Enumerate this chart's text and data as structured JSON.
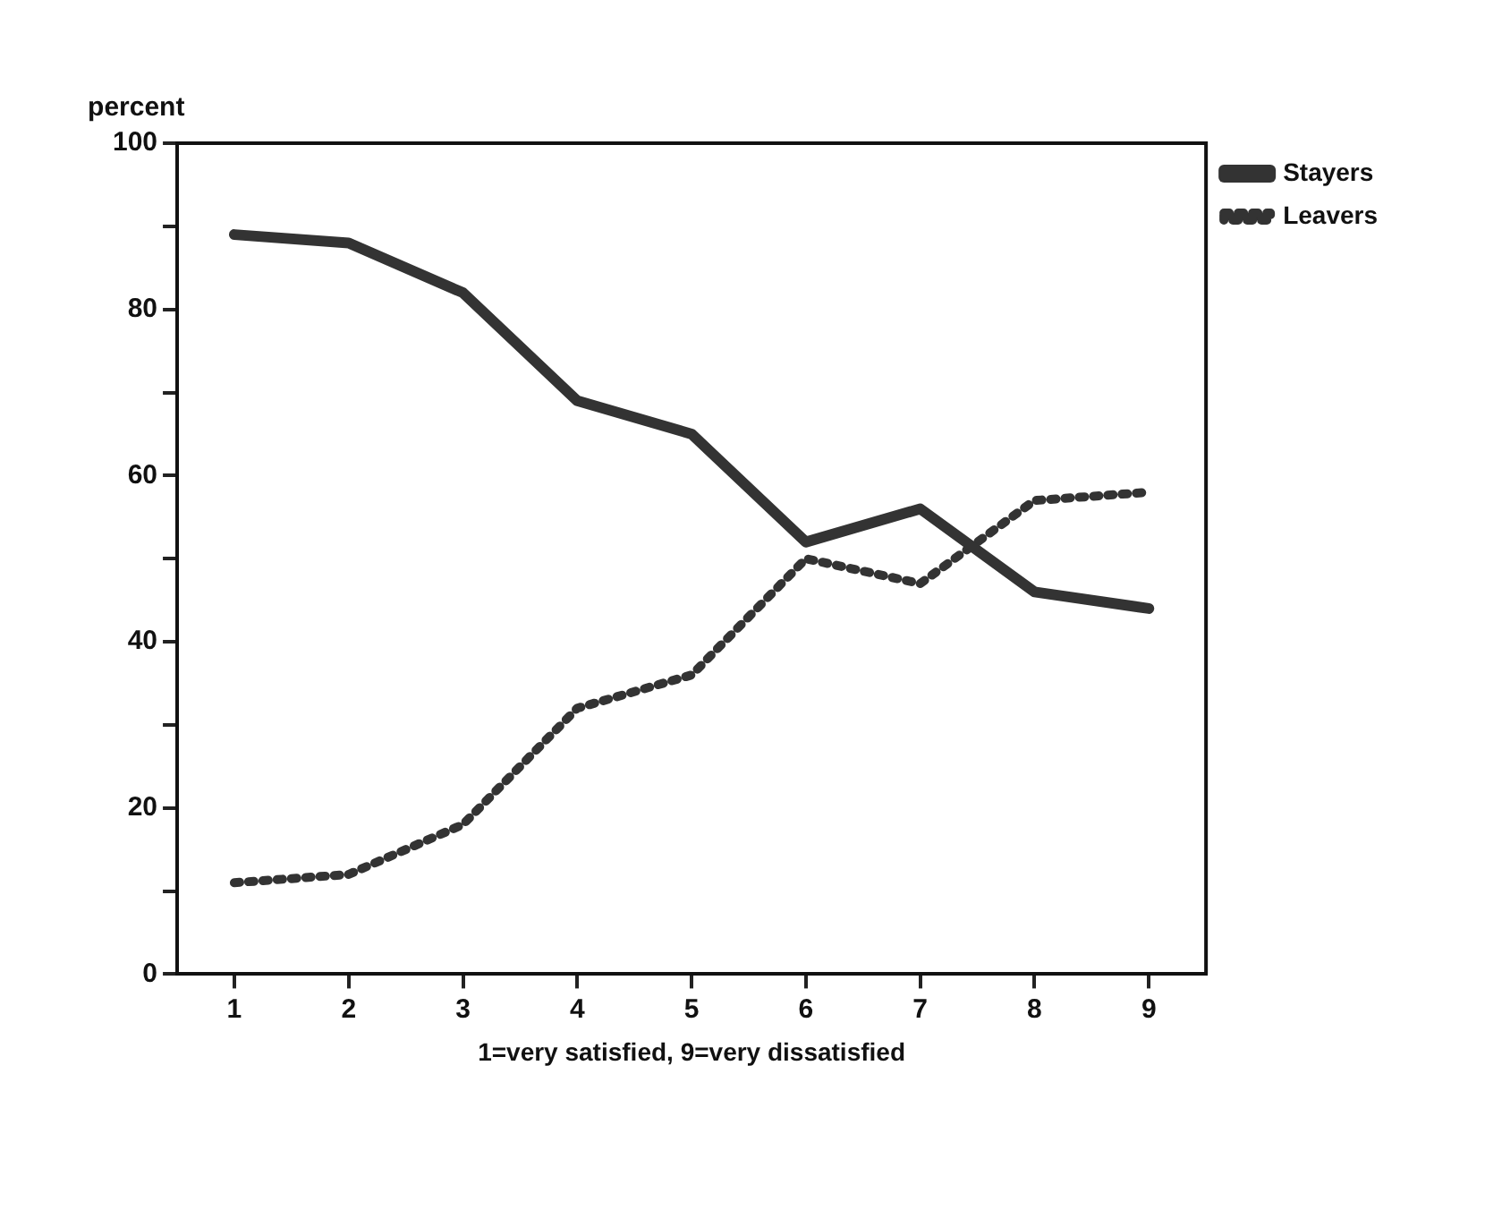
{
  "chart_data": {
    "type": "line",
    "ylabel": "percent",
    "xlabel": "1=very satisfied, 9=very dissatisfied",
    "categories": [
      "1",
      "2",
      "3",
      "4",
      "5",
      "6",
      "7",
      "8",
      "9"
    ],
    "series": [
      {
        "name": "Stayers",
        "color": "#333333",
        "line_style": "solid",
        "values": [
          89,
          88,
          82,
          69,
          65,
          52,
          56,
          46,
          44
        ]
      },
      {
        "name": "Leavers",
        "color": "#333333",
        "line_style": "dotted",
        "values": [
          11,
          12,
          18,
          32,
          36,
          50,
          47,
          57,
          58
        ]
      }
    ],
    "ylim": [
      0,
      100
    ],
    "yticks": [
      0,
      {
        "value": 10,
        "label": null
      },
      20,
      {
        "value": 30,
        "label": null
      },
      40,
      {
        "value": 50,
        "label": null
      },
      60,
      {
        "value": 70,
        "label": null
      },
      80,
      {
        "value": 90,
        "label": null
      },
      100
    ],
    "grid": false,
    "legend": "top right",
    "marker": "none"
  }
}
